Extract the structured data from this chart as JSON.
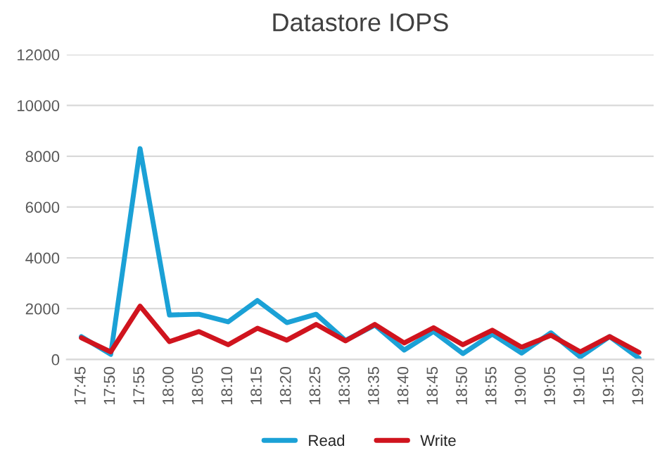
{
  "chart_data": {
    "type": "line",
    "title": "Datastore IOPS",
    "categories": [
      "17:45",
      "17:50",
      "17:55",
      "18:00",
      "18:05",
      "18:10",
      "18:15",
      "18:20",
      "18:25",
      "18:30",
      "18:35",
      "18:40",
      "18:45",
      "18:50",
      "18:55",
      "19:00",
      "19:05",
      "19:10",
      "19:15",
      "19:20"
    ],
    "series": [
      {
        "name": "Read",
        "color": "#1ba1d6",
        "values": [
          900,
          200,
          8300,
          1750,
          1780,
          1480,
          2320,
          1450,
          1780,
          750,
          1350,
          370,
          1100,
          230,
          1000,
          250,
          1050,
          100,
          900,
          50
        ]
      },
      {
        "name": "Write",
        "color": "#d0141e",
        "values": [
          850,
          300,
          2100,
          700,
          1100,
          580,
          1230,
          760,
          1380,
          730,
          1380,
          650,
          1250,
          580,
          1150,
          480,
          950,
          300,
          900,
          280
        ]
      }
    ],
    "ylim": [
      0,
      12000
    ],
    "yticks": [
      0,
      2000,
      4000,
      6000,
      8000,
      10000,
      12000
    ],
    "grid": "y",
    "legend": "bottom",
    "marker": "none",
    "line_style": "solid"
  }
}
